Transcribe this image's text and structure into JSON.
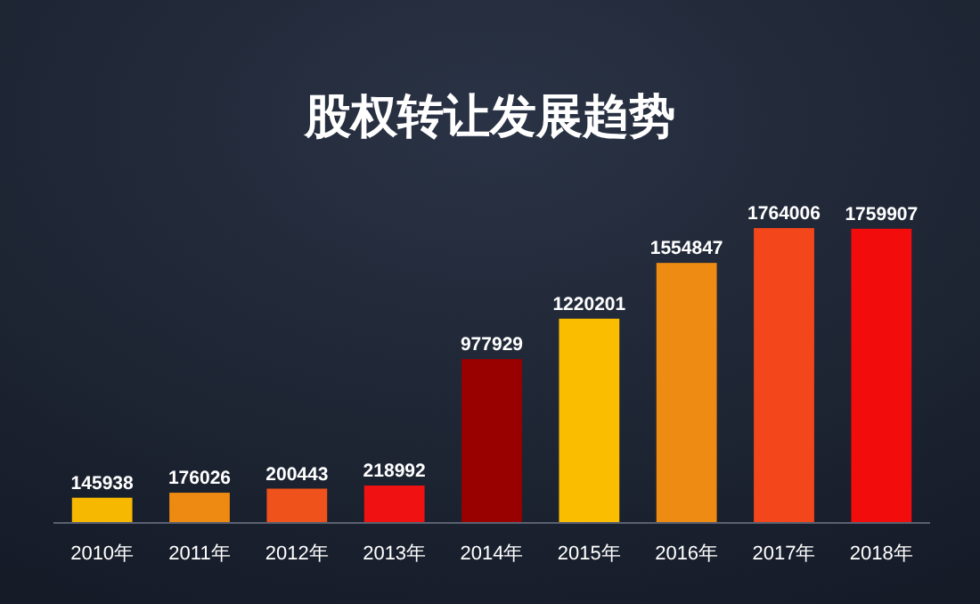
{
  "chart_data": {
    "type": "bar",
    "title": "股权转让发展趋势",
    "categories": [
      "2010年",
      "2011年",
      "2012年",
      "2013年",
      "2014年",
      "2015年",
      "2016年",
      "2017年",
      "2018年"
    ],
    "values": [
      145938,
      176026,
      200443,
      218992,
      977929,
      1220201,
      1554847,
      1764006,
      1759907
    ],
    "colors": [
      "#f6b800",
      "#ee8a12",
      "#f0521b",
      "#f01212",
      "#990000",
      "#fbbd00",
      "#ee8b12",
      "#f3461a",
      "#f30c0c"
    ],
    "data_labels": true
  }
}
